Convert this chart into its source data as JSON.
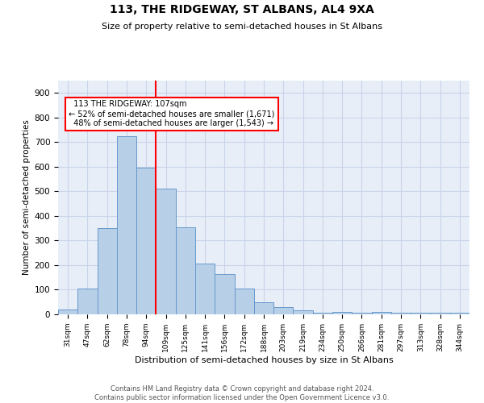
{
  "title": "113, THE RIDGEWAY, ST ALBANS, AL4 9XA",
  "subtitle": "Size of property relative to semi-detached houses in St Albans",
  "xlabel": "Distribution of semi-detached houses by size in St Albans",
  "ylabel": "Number of semi-detached properties",
  "bar_labels": [
    "31sqm",
    "47sqm",
    "62sqm",
    "78sqm",
    "94sqm",
    "109sqm",
    "125sqm",
    "141sqm",
    "156sqm",
    "172sqm",
    "188sqm",
    "203sqm",
    "219sqm",
    "234sqm",
    "250sqm",
    "266sqm",
    "281sqm",
    "297sqm",
    "313sqm",
    "328sqm",
    "344sqm"
  ],
  "bar_values": [
    20,
    105,
    350,
    725,
    595,
    510,
    355,
    205,
    165,
    105,
    50,
    30,
    15,
    8,
    10,
    5,
    10,
    5,
    5,
    5,
    5
  ],
  "bar_color": "#b8cfe8",
  "bar_edge_color": "#6699cc",
  "property_line_x": 4.5,
  "property_label": "113 THE RIDGEWAY: 107sqm",
  "pct_smaller": 52,
  "pct_larger": 48,
  "count_smaller": 1671,
  "count_larger": 1543,
  "ylim": [
    0,
    950
  ],
  "yticks": [
    0,
    100,
    200,
    300,
    400,
    500,
    600,
    700,
    800,
    900
  ],
  "background_color": "#ffffff",
  "plot_bg_color": "#e8eef8",
  "grid_color": "#c8d4e8",
  "footer_line1": "Contains HM Land Registry data © Crown copyright and database right 2024.",
  "footer_line2": "Contains public sector information licensed under the Open Government Licence v3.0."
}
